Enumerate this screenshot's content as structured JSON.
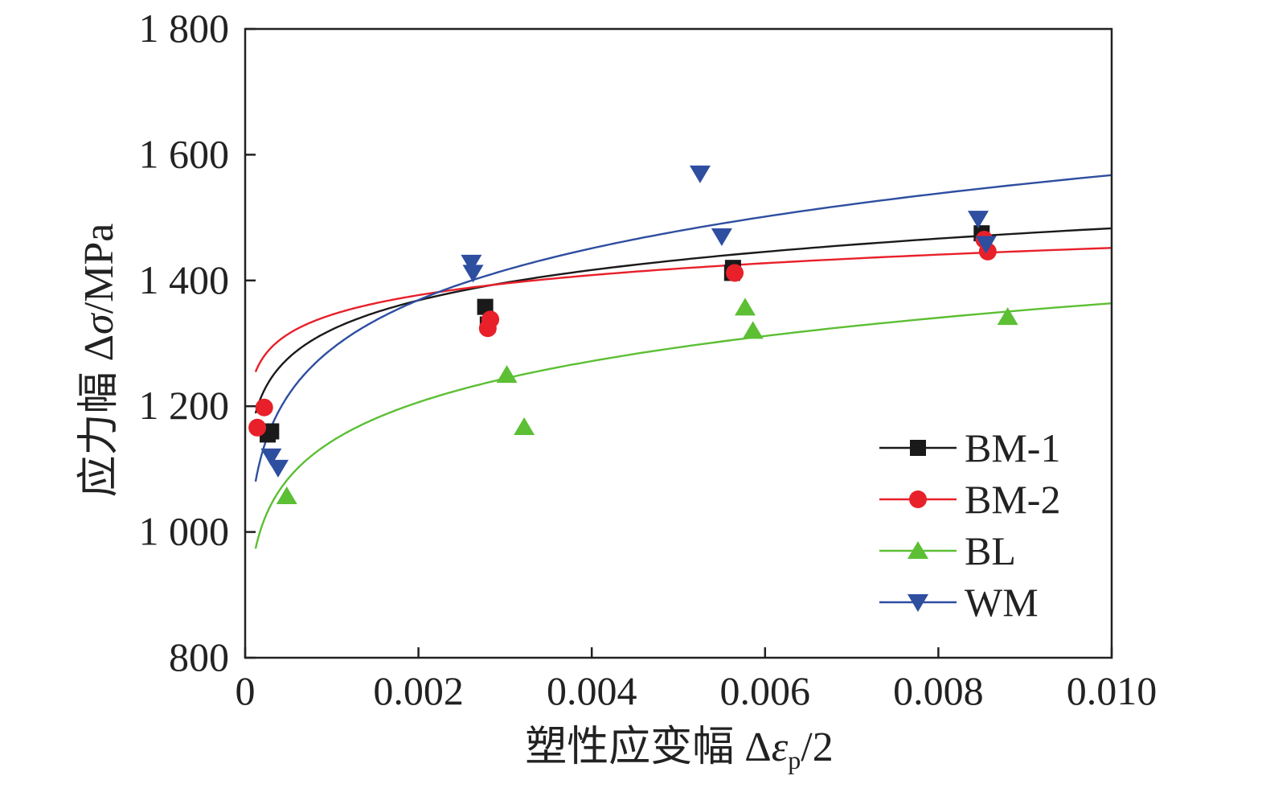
{
  "chart_data": {
    "type": "scatter",
    "title": "",
    "xlabel": "塑性应变幅 Δεp/2",
    "xlabel_parts": {
      "prefix": "塑性应变幅 Δ",
      "symbol": "ε",
      "subscript": "p",
      "suffix": "/2"
    },
    "ylabel": "应力幅 Δσ/MPa",
    "ylabel_parts": {
      "prefix": "应力幅 Δ",
      "symbol": "σ",
      "suffix": "/MPa"
    },
    "xlim": [
      0,
      0.01
    ],
    "ylim": [
      800,
      1800
    ],
    "x_ticks": [
      0,
      0.002,
      0.004,
      0.006,
      0.008,
      0.01
    ],
    "x_tick_labels": [
      "0",
      "0.002",
      "0.004",
      "0.006",
      "0.008",
      "0.010"
    ],
    "y_ticks": [
      800,
      1000,
      1200,
      1400,
      1600,
      1800
    ],
    "y_tick_labels": [
      "800",
      "1 000",
      "1 200",
      "1 400",
      "1 600",
      "1 800"
    ],
    "grid": false,
    "legend_position": "bottom-right",
    "series": [
      {
        "name": "BM-1",
        "color": "#1a1a1a",
        "marker": "square",
        "points": [
          [
            0.00026,
            1155
          ],
          [
            0.0003,
            1160
          ],
          [
            0.00277,
            1358
          ],
          [
            0.0028,
            1330
          ],
          [
            0.00563,
            1420
          ],
          [
            0.00562,
            1412
          ],
          [
            0.0085,
            1475
          ]
        ],
        "fit": {
          "K": 1867,
          "n": 0.05
        }
      },
      {
        "name": "BM-2",
        "color": "#e8202a",
        "marker": "circle",
        "points": [
          [
            0.00014,
            1166
          ],
          [
            0.00022,
            1198
          ],
          [
            0.00283,
            1338
          ],
          [
            0.0028,
            1324
          ],
          [
            0.00565,
            1412
          ],
          [
            0.00853,
            1465
          ],
          [
            0.00857,
            1446
          ]
        ],
        "fit": {
          "K": 1690,
          "n": 0.033
        }
      },
      {
        "name": "BL",
        "color": "#5cbf34",
        "marker": "triangle-up",
        "points": [
          [
            0.00048,
            1057
          ],
          [
            0.00302,
            1250
          ],
          [
            0.00322,
            1167
          ],
          [
            0.00577,
            1357
          ],
          [
            0.00586,
            1320
          ],
          [
            0.0088,
            1342
          ]
        ],
        "fit": {
          "K": 1937,
          "n": 0.0762
        }
      },
      {
        "name": "WM",
        "color": "#2e4ea0",
        "marker": "triangle-down",
        "points": [
          [
            0.0003,
            1120
          ],
          [
            0.00038,
            1102
          ],
          [
            0.00261,
            1428
          ],
          [
            0.00263,
            1412
          ],
          [
            0.00525,
            1570
          ],
          [
            0.0055,
            1470
          ],
          [
            0.00846,
            1498
          ],
          [
            0.00855,
            1458
          ]
        ],
        "fit": {
          "K": 2310,
          "n": 0.0842
        }
      }
    ]
  }
}
